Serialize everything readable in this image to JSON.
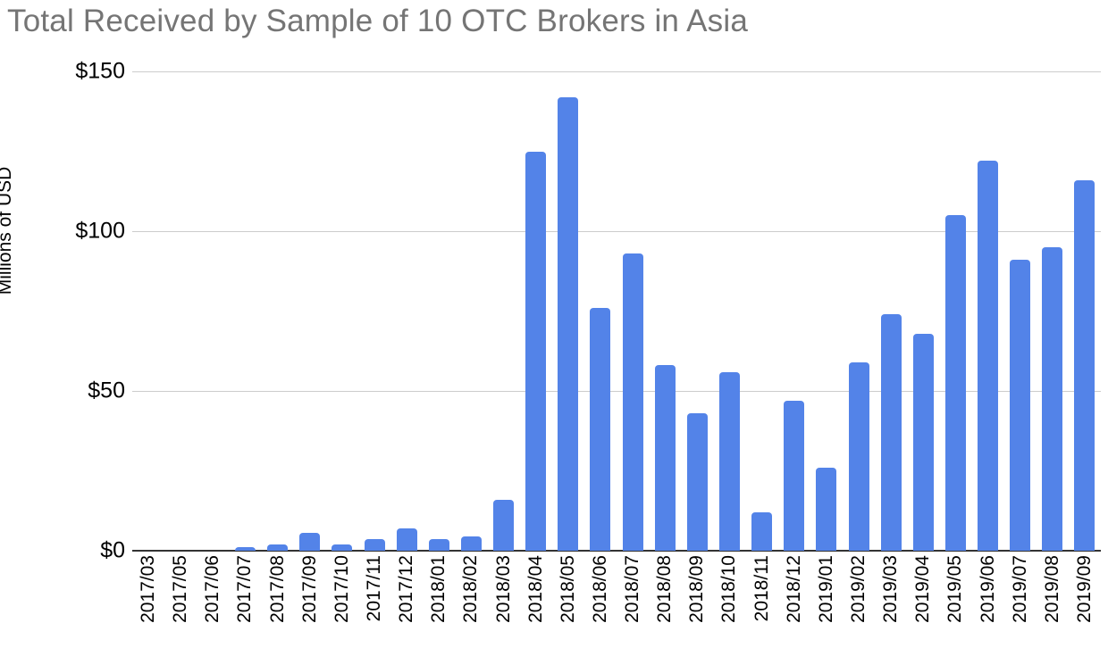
{
  "title": "Total Received by Sample of 10 OTC Brokers in Asia",
  "colors": {
    "title_text": "#757575",
    "bar": "#5383e8",
    "gridline": "#cccccc",
    "axis_line": "#333333",
    "tick_text": "#000000"
  },
  "chart_data": {
    "type": "bar",
    "title": "Total Received by Sample of 10 OTC Brokers in Asia",
    "xlabel": "",
    "ylabel": "Millions of USD",
    "ylim": [
      0,
      150
    ],
    "grid": true,
    "legend_position": "none",
    "bar_color": "#5383e8",
    "yticks": [
      {
        "value": 0,
        "label": "$0"
      },
      {
        "value": 50,
        "label": "$50"
      },
      {
        "value": 100,
        "label": "$100"
      },
      {
        "value": 150,
        "label": "$150"
      }
    ],
    "categories": [
      "2017/03",
      "2017/05",
      "2017/06",
      "2017/07",
      "2017/08",
      "2017/09",
      "2017/10",
      "2017/11",
      "2017/12",
      "2018/01",
      "2018/02",
      "2018/03",
      "2018/04",
      "2018/05",
      "2018/06",
      "2018/07",
      "2018/08",
      "2018/09",
      "2018/10",
      "2018/11",
      "2018/12",
      "2019/01",
      "2019/02",
      "2019/03",
      "2019/04",
      "2019/05",
      "2019/06",
      "2019/07",
      "2019/08",
      "2019/09"
    ],
    "values": [
      0,
      0,
      0,
      1,
      2,
      5.5,
      2,
      3.5,
      7,
      3.5,
      4.5,
      16,
      125,
      142,
      76,
      93,
      58,
      43,
      56,
      12,
      47,
      26,
      59,
      74,
      68,
      105,
      122,
      91,
      95,
      116
    ]
  }
}
